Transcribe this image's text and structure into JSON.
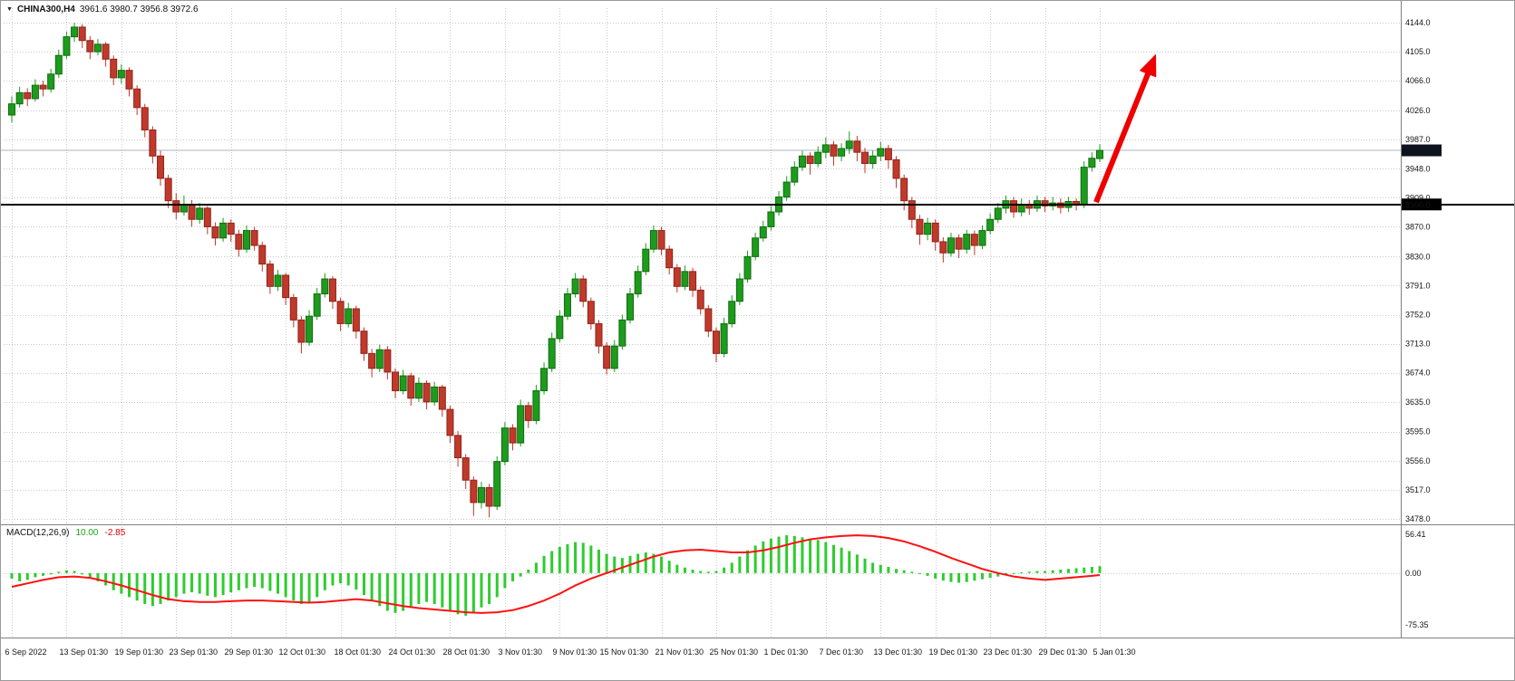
{
  "header": {
    "dropdown_icon": "▼",
    "symbol": "CHINA300,H4",
    "ohlc": "3961.6 3980.7 3956.8 3972.6"
  },
  "macd_header": {
    "name": "MACD(12,26,9)",
    "main_value": "10.00",
    "signal_value": "-2.85"
  },
  "price_axis": {
    "ticks": [
      "4144.0",
      "4105.0",
      "4066.0",
      "4026.0",
      "3987.0",
      "3948.0",
      "3909.0",
      "3870.0",
      "3830.0",
      "3791.0",
      "3752.0",
      "3713.0",
      "3674.0",
      "3635.0",
      "3595.0",
      "3556.0",
      "3517.0",
      "3478.0"
    ]
  },
  "macd_axis": {
    "ticks": [
      "56.41",
      "0.00",
      "-75.35"
    ]
  },
  "badges": {
    "current_price": "3972.6",
    "hline_price": "3900.0"
  },
  "time_axis": {
    "labels": [
      "6 Sep 2022",
      "13 Sep 01:30",
      "19 Sep 01:30",
      "23 Sep 01:30",
      "29 Sep 01:30",
      "12 Oct 01:30",
      "18 Oct 01:30",
      "24 Oct 01:30",
      "28 Oct 01:30",
      "3 Nov 01:30",
      "9 Nov 01:30",
      "15 Nov 01:30",
      "21 Nov 01:30",
      "25 Nov 01:30",
      "1 Dec 01:30",
      "7 Dec 01:30",
      "13 Dec 01:30",
      "19 Dec 01:30",
      "23 Dec 01:30",
      "29 Dec 01:30",
      "5 Jan 01:30"
    ]
  },
  "colors": {
    "bull": "#1e9b1e",
    "bull_border": "#0c6e0c",
    "bear": "#c0392b",
    "bear_border": "#8e2418",
    "hist": "#2ecc2e",
    "signal": "#ff1010",
    "grid": "#c9c9c9",
    "hline": "#000000",
    "current_line": "#a8b6c8",
    "badge_bg": "#0d1420",
    "separator": "#808080",
    "text": "#141414",
    "arrow": "#ee0000"
  },
  "chart_data": {
    "type": "candlestick",
    "title": "CHINA300 H4",
    "symbol": "CHINA300",
    "timeframe": "H4",
    "price_range": [
      3478.0,
      4144.0
    ],
    "hline": 3900.0,
    "current_price": 3972.6,
    "last_ohlc": {
      "open": 3961.6,
      "high": 3980.7,
      "low": 3956.8,
      "close": 3972.6
    },
    "candles": [
      [
        4020,
        4045,
        4010,
        4035
      ],
      [
        4035,
        4058,
        4030,
        4050
      ],
      [
        4050,
        4056,
        4032,
        4042
      ],
      [
        4042,
        4068,
        4038,
        4060
      ],
      [
        4060,
        4066,
        4045,
        4055
      ],
      [
        4055,
        4082,
        4050,
        4075
      ],
      [
        4075,
        4108,
        4070,
        4100
      ],
      [
        4100,
        4132,
        4095,
        4125
      ],
      [
        4125,
        4144,
        4118,
        4138
      ],
      [
        4138,
        4142,
        4110,
        4120
      ],
      [
        4120,
        4126,
        4095,
        4105
      ],
      [
        4105,
        4122,
        4100,
        4115
      ],
      [
        4115,
        4118,
        4085,
        4095
      ],
      [
        4095,
        4100,
        4060,
        4070
      ],
      [
        4070,
        4088,
        4062,
        4080
      ],
      [
        4080,
        4084,
        4045,
        4055
      ],
      [
        4055,
        4060,
        4020,
        4030
      ],
      [
        4030,
        4035,
        3990,
        4000
      ],
      [
        4000,
        4005,
        3955,
        3965
      ],
      [
        3965,
        3972,
        3925,
        3935
      ],
      [
        3935,
        3940,
        3895,
        3905
      ],
      [
        3905,
        3915,
        3880,
        3890
      ],
      [
        3890,
        3912,
        3885,
        3900
      ],
      [
        3900,
        3906,
        3870,
        3880
      ],
      [
        3880,
        3902,
        3874,
        3895
      ],
      [
        3895,
        3898,
        3860,
        3870
      ],
      [
        3870,
        3876,
        3845,
        3855
      ],
      [
        3855,
        3882,
        3850,
        3875
      ],
      [
        3875,
        3880,
        3850,
        3860
      ],
      [
        3860,
        3866,
        3830,
        3840
      ],
      [
        3840,
        3872,
        3835,
        3865
      ],
      [
        3865,
        3870,
        3838,
        3845
      ],
      [
        3845,
        3850,
        3810,
        3820
      ],
      [
        3820,
        3825,
        3780,
        3790
      ],
      [
        3790,
        3812,
        3784,
        3805
      ],
      [
        3805,
        3808,
        3765,
        3775
      ],
      [
        3775,
        3780,
        3735,
        3745
      ],
      [
        3745,
        3750,
        3700,
        3715
      ],
      [
        3715,
        3758,
        3710,
        3750
      ],
      [
        3750,
        3788,
        3745,
        3780
      ],
      [
        3780,
        3808,
        3775,
        3800
      ],
      [
        3800,
        3804,
        3760,
        3770
      ],
      [
        3770,
        3775,
        3730,
        3740
      ],
      [
        3740,
        3768,
        3735,
        3760
      ],
      [
        3760,
        3764,
        3720,
        3730
      ],
      [
        3730,
        3735,
        3690,
        3700
      ],
      [
        3700,
        3706,
        3668,
        3680
      ],
      [
        3680,
        3712,
        3675,
        3705
      ],
      [
        3705,
        3710,
        3665,
        3675
      ],
      [
        3675,
        3680,
        3640,
        3650
      ],
      [
        3650,
        3678,
        3645,
        3670
      ],
      [
        3670,
        3674,
        3630,
        3640
      ],
      [
        3640,
        3668,
        3635,
        3660
      ],
      [
        3660,
        3664,
        3625,
        3635
      ],
      [
        3635,
        3662,
        3630,
        3655
      ],
      [
        3655,
        3658,
        3615,
        3625
      ],
      [
        3625,
        3630,
        3580,
        3590
      ],
      [
        3590,
        3596,
        3548,
        3560
      ],
      [
        3560,
        3565,
        3518,
        3530
      ],
      [
        3530,
        3535,
        3482,
        3500
      ],
      [
        3500,
        3528,
        3492,
        3520
      ],
      [
        3520,
        3525,
        3480,
        3495
      ],
      [
        3495,
        3562,
        3490,
        3555
      ],
      [
        3555,
        3608,
        3550,
        3600
      ],
      [
        3600,
        3605,
        3570,
        3580
      ],
      [
        3580,
        3638,
        3575,
        3630
      ],
      [
        3630,
        3635,
        3600,
        3610
      ],
      [
        3610,
        3658,
        3605,
        3650
      ],
      [
        3650,
        3688,
        3645,
        3680
      ],
      [
        3680,
        3728,
        3675,
        3720
      ],
      [
        3720,
        3758,
        3715,
        3750
      ],
      [
        3750,
        3788,
        3745,
        3780
      ],
      [
        3780,
        3808,
        3775,
        3800
      ],
      [
        3800,
        3805,
        3762,
        3770
      ],
      [
        3770,
        3775,
        3732,
        3740
      ],
      [
        3740,
        3745,
        3700,
        3710
      ],
      [
        3710,
        3715,
        3672,
        3680
      ],
      [
        3680,
        3718,
        3675,
        3710
      ],
      [
        3710,
        3752,
        3705,
        3745
      ],
      [
        3745,
        3788,
        3740,
        3780
      ],
      [
        3780,
        3818,
        3775,
        3810
      ],
      [
        3810,
        3848,
        3805,
        3840
      ],
      [
        3840,
        3872,
        3835,
        3865
      ],
      [
        3865,
        3870,
        3832,
        3840
      ],
      [
        3840,
        3845,
        3806,
        3815
      ],
      [
        3815,
        3820,
        3782,
        3790
      ],
      [
        3790,
        3818,
        3785,
        3810
      ],
      [
        3810,
        3815,
        3776,
        3785
      ],
      [
        3785,
        3790,
        3752,
        3760
      ],
      [
        3760,
        3765,
        3722,
        3730
      ],
      [
        3730,
        3735,
        3688,
        3700
      ],
      [
        3700,
        3748,
        3695,
        3740
      ],
      [
        3740,
        3778,
        3735,
        3770
      ],
      [
        3770,
        3808,
        3765,
        3800
      ],
      [
        3800,
        3838,
        3795,
        3830
      ],
      [
        3830,
        3862,
        3825,
        3855
      ],
      [
        3855,
        3878,
        3850,
        3870
      ],
      [
        3870,
        3898,
        3865,
        3890
      ],
      [
        3890,
        3918,
        3885,
        3910
      ],
      [
        3910,
        3938,
        3905,
        3930
      ],
      [
        3930,
        3958,
        3925,
        3950
      ],
      [
        3950,
        3972,
        3945,
        3965
      ],
      [
        3965,
        3970,
        3940,
        3955
      ],
      [
        3955,
        3978,
        3950,
        3970
      ],
      [
        3970,
        3990,
        3962,
        3980
      ],
      [
        3980,
        3985,
        3952,
        3965
      ],
      [
        3965,
        3982,
        3958,
        3975
      ],
      [
        3975,
        3998,
        3968,
        3985
      ],
      [
        3985,
        3992,
        3958,
        3970
      ],
      [
        3970,
        3976,
        3942,
        3955
      ],
      [
        3955,
        3972,
        3948,
        3965
      ],
      [
        3965,
        3984,
        3958,
        3975
      ],
      [
        3975,
        3980,
        3948,
        3960
      ],
      [
        3960,
        3965,
        3922,
        3935
      ],
      [
        3935,
        3940,
        3892,
        3905
      ],
      [
        3905,
        3910,
        3868,
        3880
      ],
      [
        3880,
        3886,
        3846,
        3860
      ],
      [
        3860,
        3882,
        3852,
        3875
      ],
      [
        3875,
        3880,
        3838,
        3850
      ],
      [
        3850,
        3856,
        3822,
        3835
      ],
      [
        3835,
        3862,
        3830,
        3855
      ],
      [
        3855,
        3860,
        3828,
        3840
      ],
      [
        3840,
        3866,
        3834,
        3860
      ],
      [
        3860,
        3865,
        3832,
        3845
      ],
      [
        3845,
        3872,
        3840,
        3865
      ],
      [
        3865,
        3888,
        3860,
        3880
      ],
      [
        3880,
        3902,
        3875,
        3895
      ],
      [
        3895,
        3912,
        3888,
        3905
      ],
      [
        3905,
        3910,
        3882,
        3890
      ],
      [
        3890,
        3908,
        3884,
        3900
      ],
      [
        3900,
        3906,
        3886,
        3895
      ],
      [
        3895,
        3912,
        3890,
        3905
      ],
      [
        3905,
        3910,
        3890,
        3898
      ],
      [
        3898,
        3910,
        3892,
        3902
      ],
      [
        3902,
        3908,
        3888,
        3896
      ],
      [
        3896,
        3910,
        3890,
        3904
      ],
      [
        3904,
        3908,
        3892,
        3900
      ],
      [
        3900,
        3958,
        3895,
        3950
      ],
      [
        3950,
        3970,
        3944,
        3962
      ],
      [
        3961.6,
        3980.7,
        3956.8,
        3972.6
      ]
    ],
    "macd": {
      "label": "MACD(12,26,9)",
      "main_last": 10.0,
      "signal_last": -2.85,
      "range": [
        -75.35,
        56.41
      ],
      "histogram": [
        -8,
        -12,
        -10,
        -6,
        -4,
        -2,
        2,
        4,
        3,
        -2,
        -6,
        -12,
        -18,
        -25,
        -30,
        -35,
        -40,
        -45,
        -48,
        -45,
        -40,
        -35,
        -30,
        -28,
        -30,
        -33,
        -35,
        -32,
        -28,
        -25,
        -22,
        -20,
        -22,
        -26,
        -30,
        -35,
        -40,
        -45,
        -42,
        -35,
        -25,
        -18,
        -15,
        -18,
        -24,
        -32,
        -40,
        -48,
        -55,
        -58,
        -55,
        -50,
        -45,
        -42,
        -45,
        -50,
        -55,
        -60,
        -62,
        -58,
        -50,
        -45,
        -35,
        -22,
        -12,
        -5,
        5,
        15,
        25,
        32,
        38,
        42,
        45,
        44,
        40,
        34,
        28,
        24,
        22,
        25,
        28,
        30,
        28,
        24,
        18,
        12,
        8,
        5,
        3,
        2,
        3,
        8,
        15,
        24,
        33,
        40,
        46,
        50,
        53,
        55,
        54,
        52,
        50,
        48,
        45,
        41,
        37,
        32,
        27,
        21,
        15,
        12,
        9,
        6,
        4,
        2,
        -1,
        -4,
        -8,
        -11,
        -13,
        -14,
        -13,
        -11,
        -9,
        -7,
        -5,
        -3,
        -1,
        1,
        2,
        3,
        3,
        4,
        5,
        6,
        7,
        8,
        9,
        10
      ],
      "signal": [
        -20,
        -17.5,
        -15,
        -12.5,
        -10,
        -8,
        -6,
        -5.5,
        -5,
        -6,
        -7,
        -9.5,
        -12,
        -15,
        -18,
        -21.5,
        -25,
        -28.5,
        -32,
        -35,
        -38,
        -39.5,
        -41,
        -41.5,
        -42,
        -42,
        -42,
        -41.5,
        -41,
        -40.5,
        -40,
        -40,
        -40,
        -40.5,
        -41,
        -41.5,
        -42,
        -42.5,
        -43,
        -42.5,
        -42,
        -41,
        -40,
        -39,
        -38,
        -39,
        -40,
        -42,
        -44,
        -46,
        -48,
        -49.5,
        -51,
        -52,
        -53,
        -54,
        -55,
        -56,
        -57,
        -57.5,
        -58,
        -57.5,
        -57,
        -55.5,
        -54,
        -51,
        -48,
        -44,
        -40,
        -35,
        -30,
        -24,
        -18,
        -13,
        -8,
        -4,
        0,
        4,
        8,
        12,
        16,
        20,
        24,
        27,
        30,
        31.5,
        33,
        33.5,
        34,
        33,
        32,
        31,
        30,
        30,
        30,
        31.5,
        33,
        35.5,
        38,
        41,
        44,
        46.5,
        49,
        50.5,
        52,
        53,
        54,
        54.5,
        55,
        54.5,
        54,
        52.5,
        51,
        48.5,
        46,
        42.5,
        39,
        35,
        31,
        26.5,
        22,
        18,
        14,
        10,
        6,
        3,
        0,
        -2.5,
        -5,
        -6.5,
        -8,
        -9,
        -10,
        -9,
        -8,
        -7,
        -6,
        -5,
        -4,
        -2.85
      ]
    },
    "annotation_arrow": {
      "color": "#ee0000",
      "from_price": 3903,
      "to_price": 4102,
      "dx1": -4,
      "dx2": 62
    }
  }
}
